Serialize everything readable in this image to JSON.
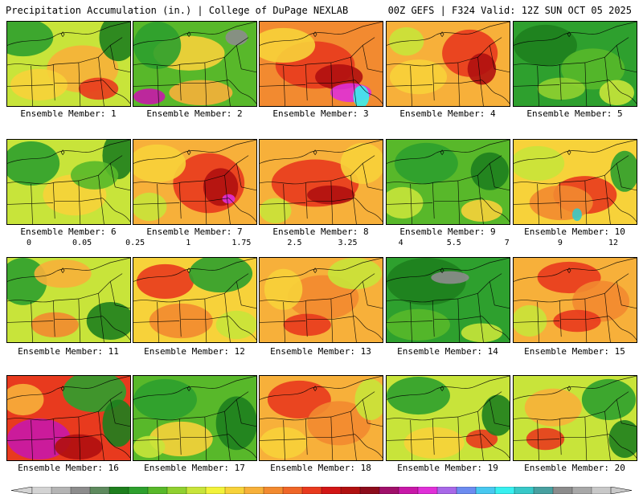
{
  "header": {
    "title": "Precipitation Accumulation (in.) | College of DuPage NEXLAB",
    "run_info": "00Z GEFS | F324 Valid: 12Z SUN OCT 05 2025"
  },
  "legend": {
    "tick_labels": [
      "0",
      "0.05",
      "0.25",
      "1",
      "1.75",
      "2.5",
      "3.25",
      "4",
      "5.5",
      "7",
      "9",
      "12"
    ],
    "colors": [
      "#d3d3d3",
      "#b4b4b4",
      "#8c8c8c",
      "#5e8a5e",
      "#1e7f1e",
      "#2ea02e",
      "#58b82a",
      "#90d030",
      "#c8e43a",
      "#f2f23a",
      "#f7d23a",
      "#f7b03a",
      "#f28a30",
      "#ef6628",
      "#e83a1e",
      "#d21616",
      "#b01010",
      "#8c0c1c",
      "#a0106a",
      "#c818a8",
      "#e030d8",
      "#a868e8",
      "#6c8cf0",
      "#48c8f0",
      "#38f0f0",
      "#38c8c8",
      "#48a0a0",
      "#8c8c8c",
      "#a8a8a8",
      "#c8c8c8"
    ]
  },
  "members": [
    {
      "label": "Ensemble Member: 1"
    },
    {
      "label": "Ensemble Member: 2"
    },
    {
      "label": "Ensemble Member: 3"
    },
    {
      "label": "Ensemble Member: 4"
    },
    {
      "label": "Ensemble Member: 5"
    },
    {
      "label": "Ensemble Member: 6"
    },
    {
      "label": "Ensemble Member: 7"
    },
    {
      "label": "Ensemble Member: 8"
    },
    {
      "label": "Ensemble Member: 9"
    },
    {
      "label": "Ensemble Member: 10"
    },
    {
      "label": "Ensemble Member: 11"
    },
    {
      "label": "Ensemble Member: 12"
    },
    {
      "label": "Ensemble Member: 13"
    },
    {
      "label": "Ensemble Member: 14"
    },
    {
      "label": "Ensemble Member: 15"
    },
    {
      "label": "Ensemble Member: 16"
    },
    {
      "label": "Ensemble Member: 17"
    },
    {
      "label": "Ensemble Member: 18"
    },
    {
      "label": "Ensemble Member: 19"
    },
    {
      "label": "Ensemble Member: 20"
    }
  ]
}
